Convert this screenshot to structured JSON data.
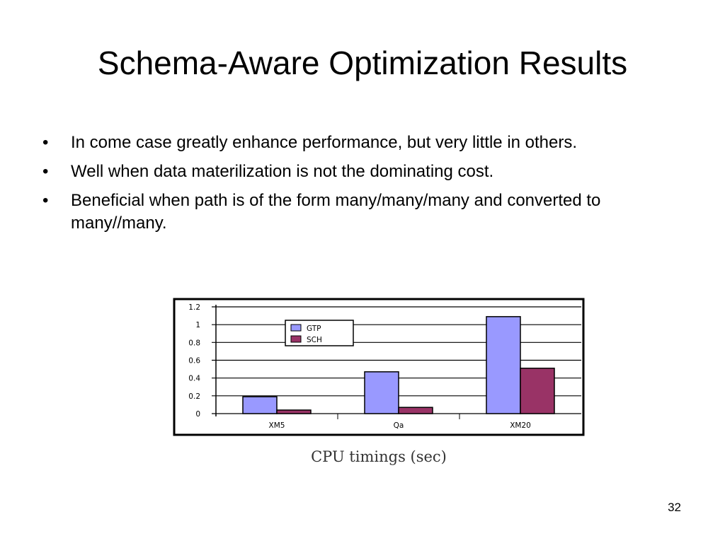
{
  "slide": {
    "title": "Schema-Aware Optimization Results",
    "bullets": [
      "In come case greatly enhance performance, but very little in others.",
      "Well when data materilization is not the dominating cost.",
      "Beneficial when path is of the form many/many/many and converted to many//many."
    ],
    "bullet_symbol": "•",
    "page_number": "32"
  },
  "chart_data": {
    "type": "bar",
    "title": "",
    "caption": "CPU timings (sec)",
    "xlabel": "",
    "ylabel": "",
    "categories": [
      "XM5",
      "Qa",
      "XM20"
    ],
    "series": [
      {
        "name": "GTP",
        "values": [
          0.19,
          0.47,
          1.09
        ],
        "color": "#9999ff"
      },
      {
        "name": "SCH",
        "values": [
          0.04,
          0.07,
          0.51
        ],
        "color": "#993366"
      }
    ],
    "ylim": [
      0,
      1.2
    ],
    "yticks": [
      "0",
      "0.2",
      "0.4",
      "0.6",
      "0.8",
      "1",
      "1.2"
    ],
    "grid": true,
    "legend_position": "top-left"
  }
}
